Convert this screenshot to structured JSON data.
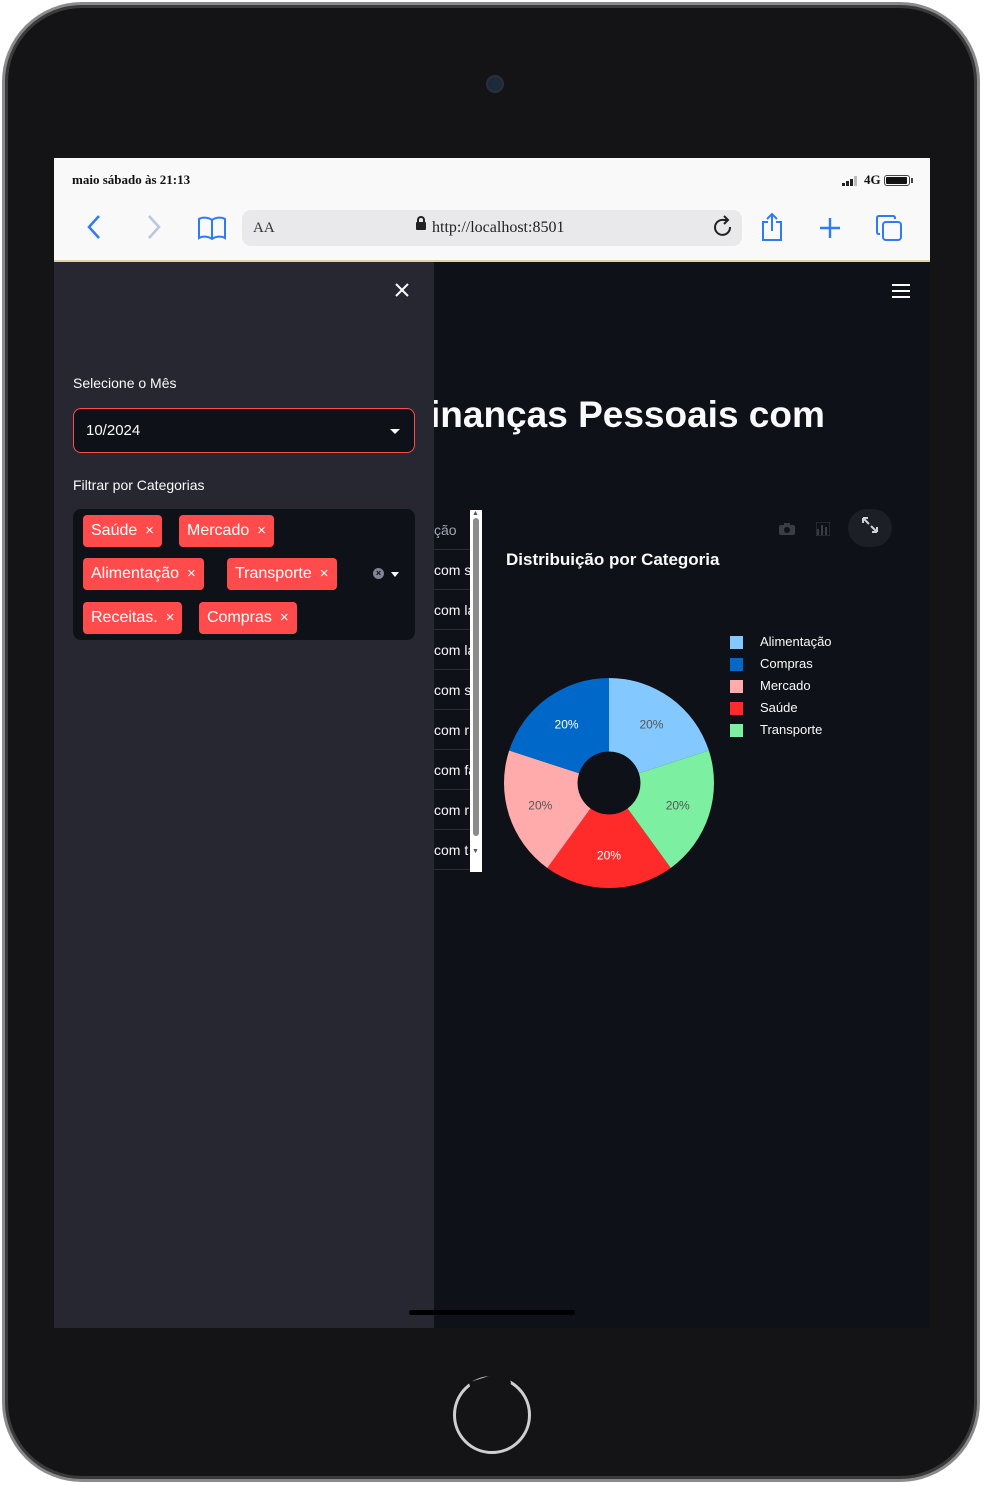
{
  "status_bar": {
    "time": "maio sábado às 21:13",
    "network": "4G"
  },
  "browser": {
    "aa_label": "AA",
    "url": "http://localhost:8501"
  },
  "sidebar": {
    "month_label": "Selecione o Mês",
    "month_value": "10/2024",
    "categories_label": "Filtrar por Categorias",
    "tags": [
      "Saúde",
      "Mercado",
      "Alimentação",
      "Transporte",
      "Receitas.",
      "Compras"
    ],
    "tag_remove_glyph": "×",
    "close_glyph": "×"
  },
  "main": {
    "title": "inanças Pessoais com",
    "table_header": "ção",
    "table_cells": [
      "com s",
      "com la",
      "com la",
      "com s",
      "com r",
      "com fa",
      "com r",
      "com t"
    ]
  },
  "chart_data": {
    "type": "pie",
    "title": "Distribuição por Categoria",
    "hole": 0.3,
    "slices": [
      {
        "label": "Alimentação",
        "value": 20,
        "text": "20%",
        "color": "#83c9ff",
        "text_color": "#555555"
      },
      {
        "label": "Transporte",
        "value": 20,
        "text": "20%",
        "color": "#7defa1",
        "text_color": "#555555"
      },
      {
        "label": "Saúde",
        "value": 20,
        "text": "20%",
        "color": "#ff2b2b",
        "text_color": "#ffffff"
      },
      {
        "label": "Mercado",
        "value": 20,
        "text": "20%",
        "color": "#ffabab",
        "text_color": "#555555"
      },
      {
        "label": "Compras",
        "value": 20,
        "text": "20%",
        "color": "#0068c9",
        "text_color": "#ffffff"
      }
    ],
    "legend": [
      "Alimentação",
      "Compras",
      "Mercado",
      "Saúde",
      "Transporte"
    ],
    "legend_colors": [
      "#83c9ff",
      "#0068c9",
      "#ffabab",
      "#ff2b2b",
      "#7defa1"
    ],
    "legend_position": "right"
  },
  "colors": {
    "accent": "#ff4b4b",
    "sidebar_bg": "#262730",
    "app_bg": "#0e1117"
  }
}
